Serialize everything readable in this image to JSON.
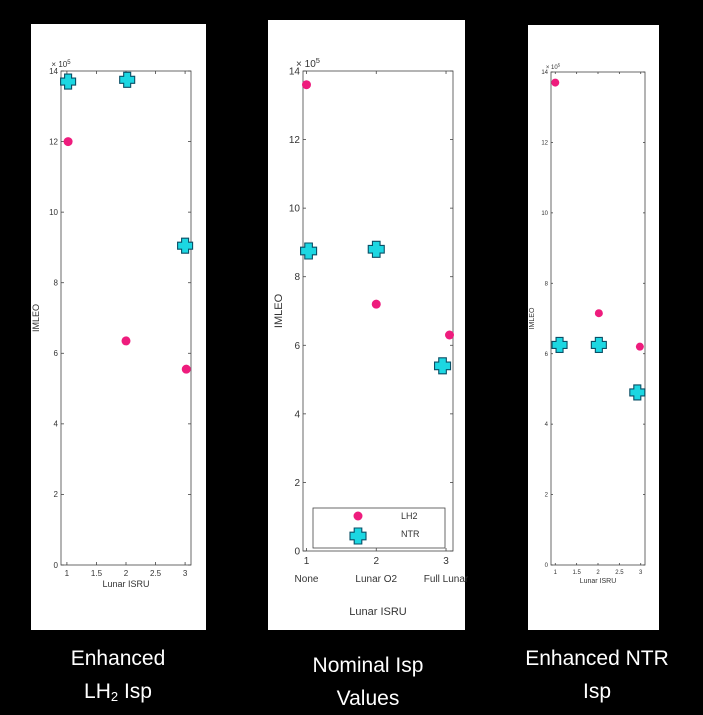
{
  "chart_data": [
    {
      "type": "scatter",
      "caption_main": "Enhanced",
      "caption_line2": "LH",
      "caption_sub": "2",
      "caption_line2_end": " Isp",
      "xlabel": "Lunar ISRU",
      "ylabel": "IMLEO",
      "y_exponent_label": "× 10",
      "y_exponent": "5",
      "xlim": [
        0.9,
        3.1
      ],
      "ylim": [
        0,
        14
      ],
      "x_ticks": [
        1,
        1.5,
        2,
        2.5,
        3
      ],
      "x_tick_labels": [
        "1",
        "1.5",
        "2",
        "2.5",
        "3"
      ],
      "y_ticks": [
        0,
        2,
        4,
        6,
        8,
        10,
        12,
        14
      ],
      "y_tick_labels": [
        "0",
        "2",
        "4",
        "6",
        "8",
        "10",
        "12",
        "14"
      ],
      "series": [
        {
          "name": "LH2",
          "marker": "circle",
          "color": "#ee1c7d",
          "x": [
            1.02,
            2.0,
            3.02
          ],
          "y": [
            12.0,
            6.35,
            5.55
          ]
        },
        {
          "name": "NTR",
          "marker": "cross",
          "color": "#1cd7e2",
          "x": [
            1.02,
            2.02,
            3.0
          ],
          "y": [
            13.7,
            13.75,
            9.05
          ]
        }
      ]
    },
    {
      "type": "scatter",
      "caption_main": "Nominal Isp",
      "caption_line2": "Values",
      "xlabel": "Lunar ISRU",
      "ylabel": "IMLEO",
      "y_exponent_label": "× 10",
      "y_exponent": "5",
      "xlim": [
        0.95,
        3.1
      ],
      "ylim": [
        0,
        14
      ],
      "x_ticks": [
        1,
        2,
        3
      ],
      "x_tick_labels": [
        "1",
        "2",
        "3"
      ],
      "x_category_labels": [
        "None",
        "Lunar O2",
        "Full Lunar"
      ],
      "y_ticks": [
        0,
        2,
        4,
        6,
        8,
        10,
        12,
        14
      ],
      "y_tick_labels": [
        "0",
        "2",
        "4",
        "6",
        "8",
        "10",
        "12",
        "14"
      ],
      "legend": {
        "position": "bottom",
        "entries": [
          "LH2",
          "NTR"
        ]
      },
      "series": [
        {
          "name": "LH2",
          "marker": "circle",
          "color": "#ee1c7d",
          "x": [
            1.0,
            2.0,
            3.05
          ],
          "y": [
            13.6,
            7.2,
            6.3
          ]
        },
        {
          "name": "NTR",
          "marker": "cross",
          "color": "#1cd7e2",
          "x": [
            1.03,
            2.0,
            2.95
          ],
          "y": [
            8.75,
            8.8,
            5.4
          ]
        }
      ]
    },
    {
      "type": "scatter",
      "caption_main": "Enhanced NTR",
      "caption_line2": "Isp",
      "xlabel": "Lunar ISRU",
      "ylabel": "IMLEO",
      "y_exponent_label": "× 10",
      "y_exponent": "5",
      "xlim": [
        0.9,
        3.1
      ],
      "ylim": [
        0,
        14
      ],
      "x_ticks": [
        1,
        1.5,
        2,
        2.5,
        3
      ],
      "x_tick_labels": [
        "1",
        "1.5",
        "2",
        "2.5",
        "3"
      ],
      "y_ticks": [
        0,
        2,
        4,
        6,
        8,
        10,
        12,
        14
      ],
      "y_tick_labels": [
        "0",
        "2",
        "4",
        "6",
        "8",
        "10",
        "12",
        "14"
      ],
      "series": [
        {
          "name": "LH2",
          "marker": "circle",
          "color": "#ee1c7d",
          "x": [
            1.0,
            2.02,
            2.98
          ],
          "y": [
            13.7,
            7.15,
            6.2
          ]
        },
        {
          "name": "NTR",
          "marker": "cross",
          "color": "#1cd7e2",
          "x": [
            1.1,
            2.02,
            2.92
          ],
          "y": [
            6.25,
            6.25,
            4.9
          ]
        }
      ]
    }
  ]
}
